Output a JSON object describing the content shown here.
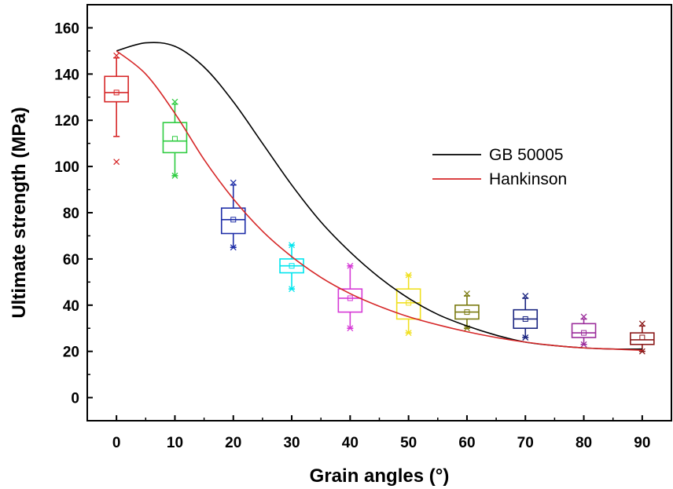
{
  "chart_data": {
    "type": "box",
    "xlabel": "Grain angles (°)",
    "ylabel": "Ultimate strength (MPa)",
    "xlim": [
      -5,
      95
    ],
    "ylim": [
      -10,
      170
    ],
    "xticks": [
      0,
      10,
      20,
      30,
      40,
      50,
      60,
      70,
      80,
      90
    ],
    "yticks": [
      0,
      20,
      40,
      60,
      80,
      100,
      120,
      140,
      160
    ],
    "grid": false,
    "legend_position": "center-right",
    "boxes": [
      {
        "x": 0,
        "color": "#d62728",
        "q1": 128,
        "median": 132,
        "q3": 139,
        "mean": 132,
        "whisker_low": 113,
        "whisker_high": 147,
        "min": 102,
        "max": 148
      },
      {
        "x": 10,
        "color": "#2ecc40",
        "q1": 106,
        "median": 111,
        "q3": 119,
        "mean": 112,
        "whisker_low": 96,
        "whisker_high": 127,
        "min": 96,
        "max": 128
      },
      {
        "x": 20,
        "color": "#1f2fa8",
        "q1": 71,
        "median": 77,
        "q3": 82,
        "mean": 77,
        "whisker_low": 65,
        "whisker_high": 92,
        "min": 65,
        "max": 93
      },
      {
        "x": 30,
        "color": "#00e5ee",
        "q1": 54,
        "median": 57,
        "q3": 60,
        "mean": 57,
        "whisker_low": 47,
        "whisker_high": 66,
        "min": 47,
        "max": 66
      },
      {
        "x": 40,
        "color": "#d63ad6",
        "q1": 37,
        "median": 43,
        "q3": 47,
        "mean": 43,
        "whisker_low": 30,
        "whisker_high": 57,
        "min": 30,
        "max": 57
      },
      {
        "x": 50,
        "color": "#f0e020",
        "q1": 34,
        "median": 41,
        "q3": 47,
        "mean": 41,
        "whisker_low": 28,
        "whisker_high": 53,
        "min": 28,
        "max": 53
      },
      {
        "x": 60,
        "color": "#7a7a10",
        "q1": 34,
        "median": 37,
        "q3": 40,
        "mean": 37,
        "whisker_low": 30,
        "whisker_high": 44,
        "min": 30,
        "max": 45
      },
      {
        "x": 70,
        "color": "#1a2580",
        "q1": 30,
        "median": 34,
        "q3": 38,
        "mean": 34,
        "whisker_low": 26,
        "whisker_high": 43,
        "min": 26,
        "max": 44
      },
      {
        "x": 80,
        "color": "#9b2d9b",
        "q1": 26,
        "median": 28,
        "q3": 32,
        "mean": 28,
        "whisker_low": 23,
        "whisker_high": 34,
        "min": 23,
        "max": 35
      },
      {
        "x": 90,
        "color": "#8b1a1a",
        "q1": 23,
        "median": 25,
        "q3": 28,
        "mean": 26,
        "whisker_low": 20,
        "whisker_high": 31,
        "min": 20,
        "max": 32
      }
    ],
    "series": [
      {
        "name": "GB 50005",
        "color": "#000000",
        "type": "line",
        "x": [
          0,
          5,
          10,
          15,
          20,
          25,
          30,
          35,
          40,
          45,
          50,
          55,
          60,
          65,
          70,
          75,
          80,
          85,
          90
        ],
        "y": [
          150,
          153.5,
          152,
          143,
          128,
          110,
          92,
          76,
          63,
          52,
          43,
          36,
          31,
          27,
          24,
          22.5,
          21.5,
          21,
          21
        ]
      },
      {
        "name": "Hankinson",
        "color": "#d62728",
        "type": "line",
        "x": [
          0,
          5,
          10,
          15,
          20,
          25,
          30,
          35,
          40,
          45,
          50,
          55,
          60,
          65,
          70,
          75,
          80,
          85,
          90
        ],
        "y": [
          150,
          140,
          123,
          103,
          86,
          72,
          61,
          52,
          45,
          39.5,
          35,
          31.5,
          28.5,
          26,
          24,
          22.5,
          21.5,
          21,
          20.5
        ]
      }
    ]
  }
}
